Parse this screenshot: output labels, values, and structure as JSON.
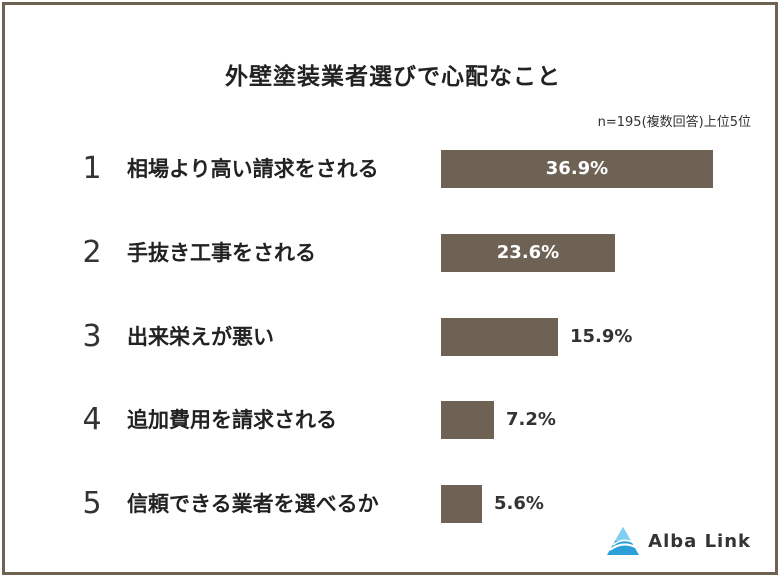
{
  "title": "外壁塗装業者選びで心配なこと",
  "note": "n=195(複数回答)上位5位",
  "chart_data": {
    "type": "bar",
    "title": "外壁塗装業者選びで心配なこと",
    "subtitle": "n=195(複数回答)上位5位",
    "categories": [
      "相場より高い請求をされる",
      "手抜き工事をされる",
      "出来栄えが悪い",
      "追加費用を請求される",
      "信頼できる業者を選べるか"
    ],
    "ranks": [
      "1",
      "2",
      "3",
      "4",
      "5"
    ],
    "values": [
      36.9,
      23.6,
      15.9,
      7.2,
      5.6
    ],
    "value_labels": [
      "36.9%",
      "23.6%",
      "15.9%",
      "7.2%",
      "5.6%"
    ],
    "orientation": "horizontal",
    "xlim": [
      0,
      37.5
    ],
    "bar_color": "#6e6254"
  },
  "logo": {
    "text": "Alba Link",
    "icon": "alba-link-logo-icon"
  },
  "colors": {
    "border": "#6e6253",
    "bar": "#6e6254"
  }
}
